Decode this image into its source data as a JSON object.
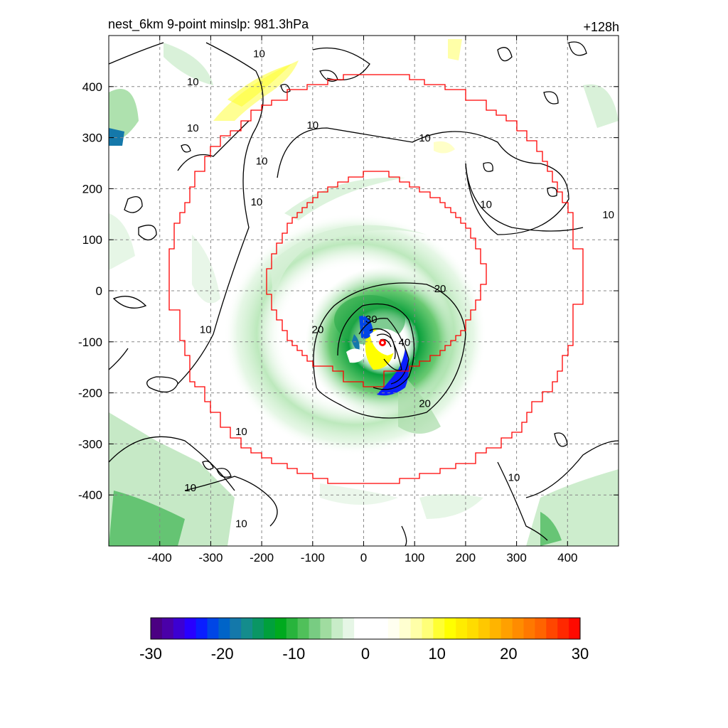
{
  "chart_data": {
    "type": "heatmap",
    "title_left": "nest_6km  9-point minslp: 981.3hPa",
    "title_right": "+128h",
    "xlim": [
      -500,
      500
    ],
    "ylim": [
      -500,
      500
    ],
    "x_ticks": [
      -400,
      -300,
      -200,
      -100,
      0,
      100,
      200,
      300,
      400
    ],
    "y_ticks": [
      400,
      300,
      200,
      100,
      0,
      -100,
      -200,
      -300,
      -400
    ],
    "grid": true,
    "colorbar": {
      "min": -30,
      "max": 30,
      "ticks": [
        -30,
        -20,
        -10,
        0,
        10,
        20,
        30
      ],
      "colors": [
        "#4b0082",
        "#4a00a8",
        "#3c00d2",
        "#2800ff",
        "#0a1eff",
        "#0046e6",
        "#0064c8",
        "#1478aa",
        "#148c8c",
        "#0a9664",
        "#00a03c",
        "#00aa1e",
        "#28b43c",
        "#50c05a",
        "#78cc82",
        "#a0dca0",
        "#c8ecc8",
        "#e6f6e6",
        "#ffffff",
        "#ffffff",
        "#ffffff",
        "#fffff0",
        "#ffffd0",
        "#ffffa8",
        "#ffff78",
        "#ffff32",
        "#ffff00",
        "#ffec00",
        "#ffdc00",
        "#ffc800",
        "#ffb400",
        "#ffa000",
        "#ff8c00",
        "#ff7800",
        "#ff6400",
        "#ff4600",
        "#ff2800",
        "#ff0a00"
      ]
    },
    "features": {
      "storm_center": [
        35,
        -100
      ],
      "inner_ring_radius_km": 180,
      "outer_ring_radius_km": 380
    },
    "contour_labels": [
      {
        "text": "10",
        "x": -205,
        "y": 460
      },
      {
        "text": "10",
        "x": -335,
        "y": 405
      },
      {
        "text": "10",
        "x": -335,
        "y": 315
      },
      {
        "text": "10",
        "x": -200,
        "y": 250
      },
      {
        "text": "10",
        "x": -210,
        "y": 170
      },
      {
        "text": "10",
        "x": -100,
        "y": 320
      },
      {
        "text": "10",
        "x": 120,
        "y": 295
      },
      {
        "text": "10",
        "x": 240,
        "y": 165
      },
      {
        "text": "10",
        "x": 480,
        "y": 145
      },
      {
        "text": "10",
        "x": -310,
        "y": -80
      },
      {
        "text": "10",
        "x": -240,
        "y": -280
      },
      {
        "text": "10",
        "x": -340,
        "y": -390
      },
      {
        "text": "10",
        "x": -240,
        "y": -460
      },
      {
        "text": "10",
        "x": 295,
        "y": -370
      },
      {
        "text": "20",
        "x": 150,
        "y": 0
      },
      {
        "text": "20",
        "x": -90,
        "y": -80
      },
      {
        "text": "20",
        "x": 120,
        "y": -225
      },
      {
        "text": "30",
        "x": 15,
        "y": -60
      },
      {
        "text": "40",
        "x": 80,
        "y": -105
      }
    ]
  }
}
